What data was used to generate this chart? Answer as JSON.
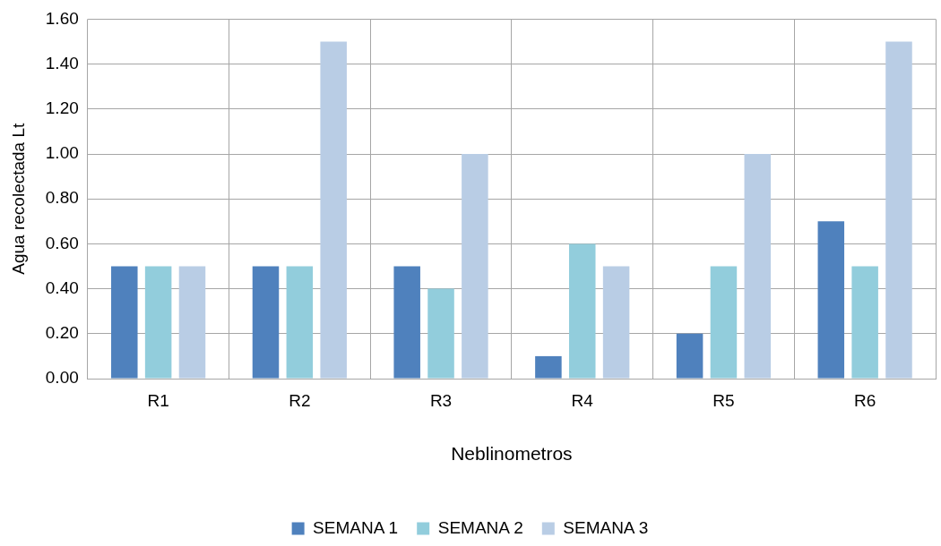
{
  "chart_data": {
    "type": "bar",
    "xlabel": "Neblinometros",
    "ylabel": "Agua recolectada Lt",
    "categories": [
      "R1",
      "R2",
      "R3",
      "R4",
      "R5",
      "R6"
    ],
    "series": [
      {
        "name": "SEMANA 1",
        "color": "#4f81bd",
        "values": [
          0.5,
          0.5,
          0.5,
          0.1,
          0.2,
          0.7
        ]
      },
      {
        "name": "SEMANA 2",
        "color": "#92cddc",
        "values": [
          0.5,
          0.5,
          0.4,
          0.6,
          0.5,
          0.5
        ]
      },
      {
        "name": "SEMANA 3",
        "color": "#b9cde5",
        "values": [
          0.5,
          1.5,
          1.0,
          0.5,
          1.0,
          1.5
        ]
      }
    ],
    "ylim": [
      0,
      1.6
    ],
    "yticks": [
      {
        "value": 0,
        "label": "0.00"
      },
      {
        "value": 0.2,
        "label": "0.20"
      },
      {
        "value": 0.4,
        "label": "0.40"
      },
      {
        "value": 0.6,
        "label": "0.60"
      },
      {
        "value": 0.8,
        "label": "0.80"
      },
      {
        "value": 1.0,
        "label": "1.00"
      },
      {
        "value": 1.2,
        "label": "1.20"
      },
      {
        "value": 1.4,
        "label": "1.40"
      },
      {
        "value": 1.6,
        "label": "1.60"
      }
    ],
    "grid": true,
    "legend": "bottom"
  }
}
